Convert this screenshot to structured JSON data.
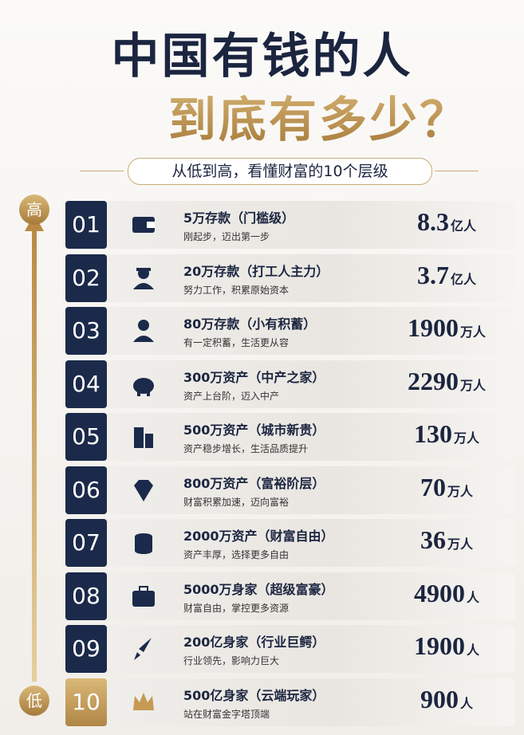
{
  "header": {
    "title_line1": "中国有钱的人",
    "title_line2": "到底有多少？",
    "subtitle": "从低到高，看懂财富的10个层级"
  },
  "scale": {
    "high": "高",
    "low": "低"
  },
  "rows": [
    {
      "rank": "01",
      "title": "5万存款（门槛级）",
      "desc": "刚起步，迈出第一步",
      "count": "8.3",
      "unit": "亿人"
    },
    {
      "rank": "02",
      "title": "20万存款（打工人主力）",
      "desc": "努力工作，积累原始资本",
      "count": "3.7",
      "unit": "亿人"
    },
    {
      "rank": "03",
      "title": "80万存款（小有积蓄）",
      "desc": "有一定积蓄，生活更从容",
      "count": "1900",
      "unit": "万人"
    },
    {
      "rank": "04",
      "title": "300万资产（中产之家）",
      "desc": "资产上台阶，迈入中产",
      "count": "2290",
      "unit": "万人"
    },
    {
      "rank": "05",
      "title": "500万资产（城市新贵）",
      "desc": "资产稳步增长，生活品质提升",
      "count": "130",
      "unit": "万人"
    },
    {
      "rank": "06",
      "title": "800万资产（富裕阶层）",
      "desc": "财富积累加速，迈向富裕",
      "count": "70",
      "unit": "万人"
    },
    {
      "rank": "07",
      "title": "2000万资产（财富自由）",
      "desc": "资产丰厚，选择更多自由",
      "count": "36",
      "unit": "万人"
    },
    {
      "rank": "08",
      "title": "5000万身家（超级富豪）",
      "desc": "财富自由，掌控更多资源",
      "count": "4900",
      "unit": "人"
    },
    {
      "rank": "09",
      "title": "200亿身家（行业巨鳄）",
      "desc": "行业领先，影响力巨大",
      "count": "1900",
      "unit": "人"
    },
    {
      "rank": "10",
      "title": "500亿身家（云端玩家）",
      "desc": "站在财富金字塔顶端",
      "count": "900",
      "unit": "人"
    }
  ]
}
